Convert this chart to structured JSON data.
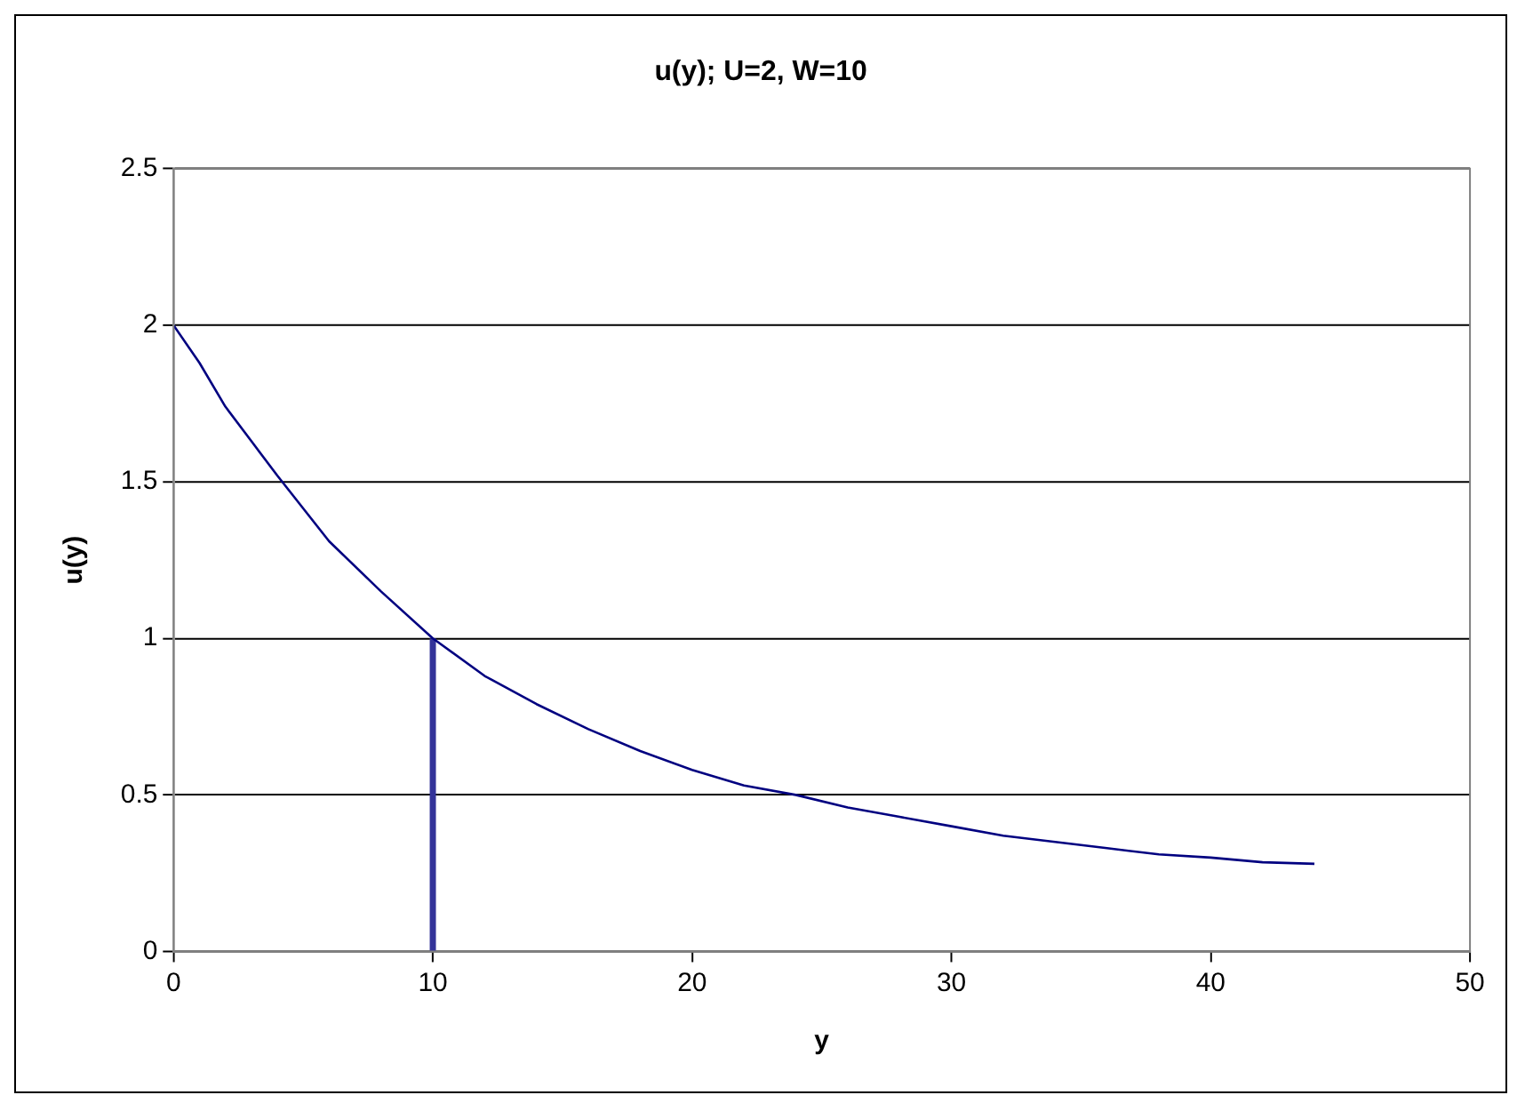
{
  "chart_data": {
    "type": "line",
    "title": "u(y); U=2, W=10",
    "xlabel": "y",
    "ylabel": "u(y)",
    "xlim": [
      0,
      50
    ],
    "xticks": [
      0,
      10,
      20,
      30,
      40,
      50
    ],
    "ylim": [
      0,
      2.5
    ],
    "yticks": [
      0,
      0.5,
      1,
      1.5,
      2,
      2.5
    ],
    "grid": "y",
    "legend": false,
    "marker": "none",
    "line_style": "solid",
    "series": [
      {
        "type": "line",
        "color": "#000080",
        "x": [
          0,
          1,
          2,
          3,
          4,
          6,
          8,
          10,
          12,
          14,
          16,
          18,
          20,
          22,
          24,
          26,
          28,
          30,
          32,
          34,
          36,
          38,
          40,
          42,
          44
        ],
        "values": [
          2,
          1.88,
          1.74,
          1.63,
          1.52,
          1.31,
          1.15,
          1,
          0.88,
          0.79,
          0.71,
          0.64,
          0.58,
          0.53,
          0.5,
          0.46,
          0.43,
          0.4,
          0.37,
          0.35,
          0.33,
          0.31,
          0.3,
          0.285,
          0.28
        ]
      },
      {
        "type": "line",
        "color": "#333399",
        "x": [
          10,
          10
        ],
        "values": [
          0,
          1
        ]
      }
    ]
  }
}
